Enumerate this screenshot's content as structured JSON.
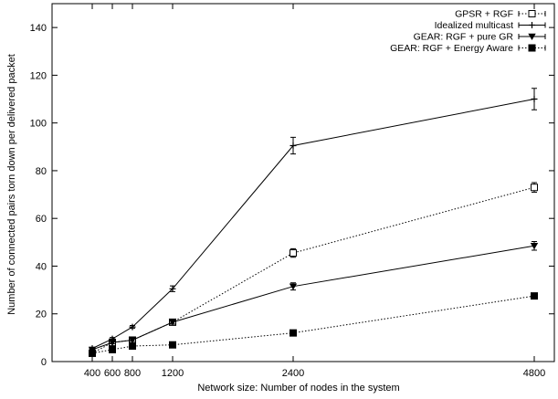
{
  "chart_data": {
    "type": "line",
    "title": "",
    "xlabel": "Network size: Number of nodes in the system",
    "ylabel": "Number of connected pairs torn down per delivered packet",
    "xlim": [
      0,
      5000
    ],
    "ylim": [
      0,
      150
    ],
    "xticks": [
      400,
      600,
      800,
      1200,
      2400,
      4800
    ],
    "yticks": [
      0,
      20,
      40,
      60,
      80,
      100,
      120,
      140
    ],
    "grid": false,
    "legend_position": "top-right",
    "x": [
      400,
      600,
      800,
      1200,
      2400,
      4800
    ],
    "series": [
      {
        "name": "GPSR + RGF",
        "marker": "open-square",
        "line": "dotted",
        "values": [
          3.5,
          8,
          9,
          16.5,
          45.5,
          73
        ],
        "errors": [
          0.5,
          0.8,
          0.8,
          1,
          1.8,
          2
        ]
      },
      {
        "name": "Idealized multicast",
        "marker": "plus",
        "line": "solid",
        "values": [
          5.5,
          9.5,
          14.5,
          30.5,
          90.5,
          110
        ],
        "errors": [
          0.5,
          0.6,
          0.6,
          1.2,
          3.5,
          4.5
        ]
      },
      {
        "name": "GEAR: RGF + pure GR",
        "marker": "triangle-down",
        "line": "solid",
        "values": [
          5,
          8,
          9,
          16.5,
          31.5,
          48.5
        ],
        "errors": [
          0.5,
          0.6,
          0.6,
          0.8,
          1.5,
          1.8
        ]
      },
      {
        "name": "GEAR: RGF + Energy Aware",
        "marker": "filled-square",
        "line": "dotted",
        "values": [
          3.5,
          5,
          6.5,
          7,
          12,
          27.5
        ],
        "errors": [
          0.3,
          0.3,
          0.3,
          0.3,
          0.4,
          0.6
        ]
      }
    ]
  }
}
